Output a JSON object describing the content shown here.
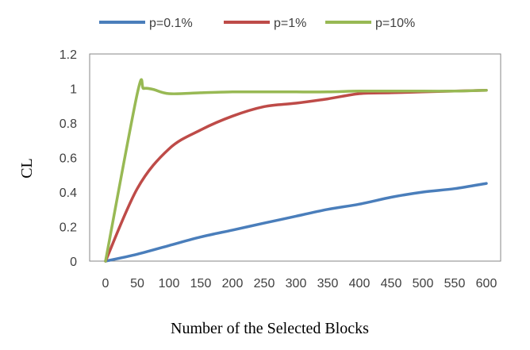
{
  "chart_data": {
    "type": "line",
    "title": "",
    "xlabel": "Number of the Selected Blocks",
    "ylabel": "CL",
    "xlim": [
      0,
      600
    ],
    "ylim": [
      0,
      1.2
    ],
    "x_ticks": [
      0,
      50,
      100,
      150,
      200,
      250,
      300,
      350,
      400,
      450,
      500,
      550,
      600
    ],
    "y_ticks": [
      0,
      0.2,
      0.4,
      0.6,
      0.8,
      1,
      1.2
    ],
    "y_tick_labels": [
      "0",
      "0.2",
      "0.4",
      "0.6",
      "0.8",
      "1",
      "1.2"
    ],
    "grid": false,
    "legend_position": "top",
    "smooth": true,
    "series": [
      {
        "name": "p=0.1%",
        "color": "#4A7EBB",
        "x": [
          0,
          50,
          100,
          150,
          200,
          250,
          300,
          350,
          400,
          450,
          500,
          550,
          600
        ],
        "values": [
          0,
          0.04,
          0.09,
          0.14,
          0.18,
          0.22,
          0.26,
          0.3,
          0.33,
          0.37,
          0.4,
          0.42,
          0.45
        ]
      },
      {
        "name": "p=1%",
        "color": "#BE4B48",
        "x": [
          0,
          50,
          100,
          150,
          200,
          250,
          300,
          350,
          400,
          450,
          500,
          550,
          600
        ],
        "values": [
          0,
          0.42,
          0.65,
          0.76,
          0.84,
          0.895,
          0.915,
          0.94,
          0.97,
          0.975,
          0.98,
          0.985,
          0.99
        ]
      },
      {
        "name": "p=10%",
        "color": "#98B954",
        "x": [
          0,
          50,
          60,
          75,
          100,
          150,
          200,
          250,
          300,
          350,
          400,
          450,
          500,
          550,
          600
        ],
        "values": [
          0,
          0.97,
          1.0,
          0.995,
          0.97,
          0.975,
          0.98,
          0.98,
          0.98,
          0.98,
          0.985,
          0.985,
          0.985,
          0.985,
          0.99
        ]
      }
    ]
  }
}
